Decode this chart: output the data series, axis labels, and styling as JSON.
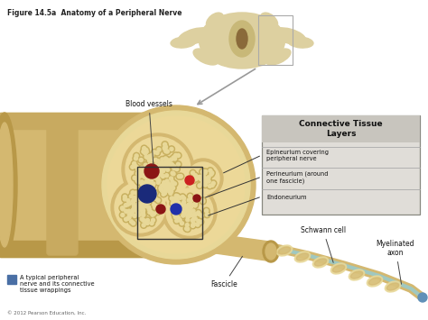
{
  "title": "Figure 14.5a  Anatomy of a Peripheral Nerve",
  "bg_color": "#f5f3ee",
  "box_title": "Connective Tissue\nLayers",
  "box_items": [
    "Epineurium covering\nperipheral nerve",
    "Perineurium (around\none fascicle)",
    "Endoneurium"
  ],
  "labels": {
    "blood_vessels": "Blood vessels",
    "fascicle": "Fascicle",
    "schwann_cell": "Schwann cell",
    "myelinated_axon": "Myelinated\naxon",
    "legend_text": "A typical peripheral\nnerve and its connective\ntissue wrappings",
    "copyright": "© 2012 Pearson Education, Inc."
  },
  "nerve_color": "#d4b870",
  "nerve_dark": "#b89848",
  "nerve_mid": "#c8aa60",
  "nerve_light": "#e8d898",
  "fascicle_outer": "#d4b870",
  "fascicle_inner": "#ecd898",
  "axon_ring": "#c8b060",
  "axon_core": "#e8d898",
  "box_bg": "#e0ddd8",
  "box_title_bg": "#c8c5be",
  "box_border": "#888880",
  "vertebra_color": "#ddd0a0",
  "vertebra_dark": "#c8ba80",
  "legend_box_color": "#4a6fa5",
  "white_bg": "#ffffff"
}
